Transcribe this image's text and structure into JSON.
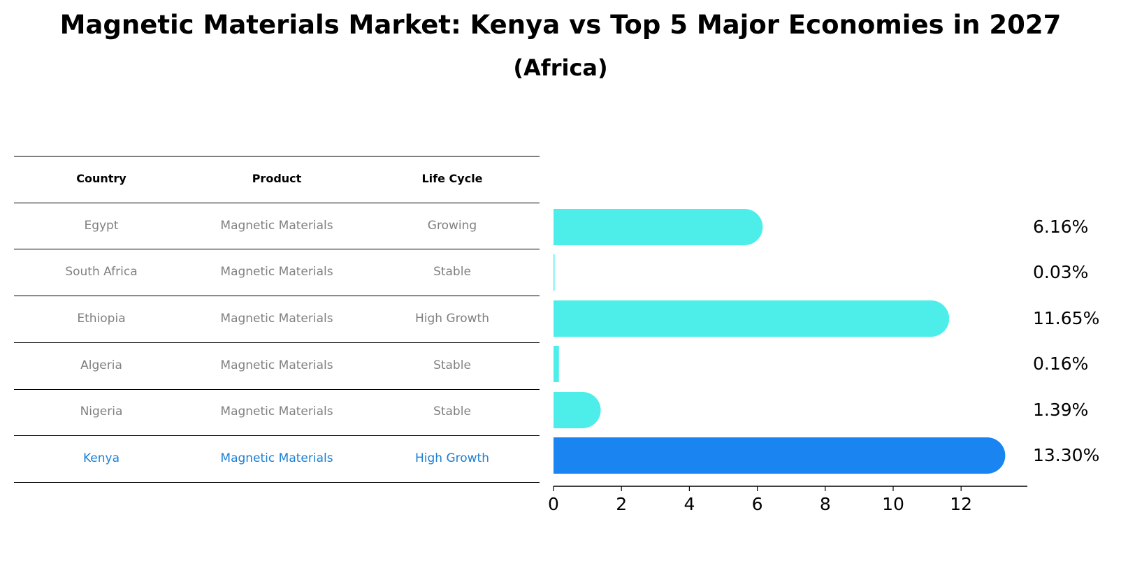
{
  "title": "Magnetic Materials Market: Kenya vs Top 5 Major Economies in 2027",
  "subtitle": "(Africa)",
  "table": {
    "headers": [
      "Country",
      "Product",
      "Life Cycle"
    ],
    "rows": [
      [
        "Egypt",
        "Magnetic Materials",
        "Growing"
      ],
      [
        "South Africa",
        "Magnetic Materials",
        "Stable"
      ],
      [
        "Ethiopia",
        "Magnetic Materials",
        "High Growth"
      ],
      [
        "Algeria",
        "Magnetic Materials",
        "Stable"
      ],
      [
        "Nigeria",
        "Magnetic Materials",
        "Stable"
      ],
      [
        "Kenya",
        "Magnetic Materials",
        "High Growth"
      ]
    ],
    "highlight_row": 5
  },
  "chart_data": {
    "type": "bar",
    "orientation": "horizontal",
    "categories": [
      "Egypt",
      "South Africa",
      "Ethiopia",
      "Algeria",
      "Nigeria",
      "Kenya"
    ],
    "values": [
      6.16,
      0.03,
      11.65,
      0.16,
      1.39,
      13.3
    ],
    "value_labels": [
      "6.16%",
      "0.03%",
      "11.65%",
      "0.16%",
      "1.39%",
      "13.30%"
    ],
    "xlim": [
      0,
      14
    ],
    "xticks": [
      0,
      2,
      4,
      6,
      8,
      10,
      12
    ],
    "colors": {
      "default": "#4deeea",
      "highlight": "#1a85f0"
    },
    "highlight_index": 5,
    "xlabel": "",
    "ylabel": ""
  }
}
